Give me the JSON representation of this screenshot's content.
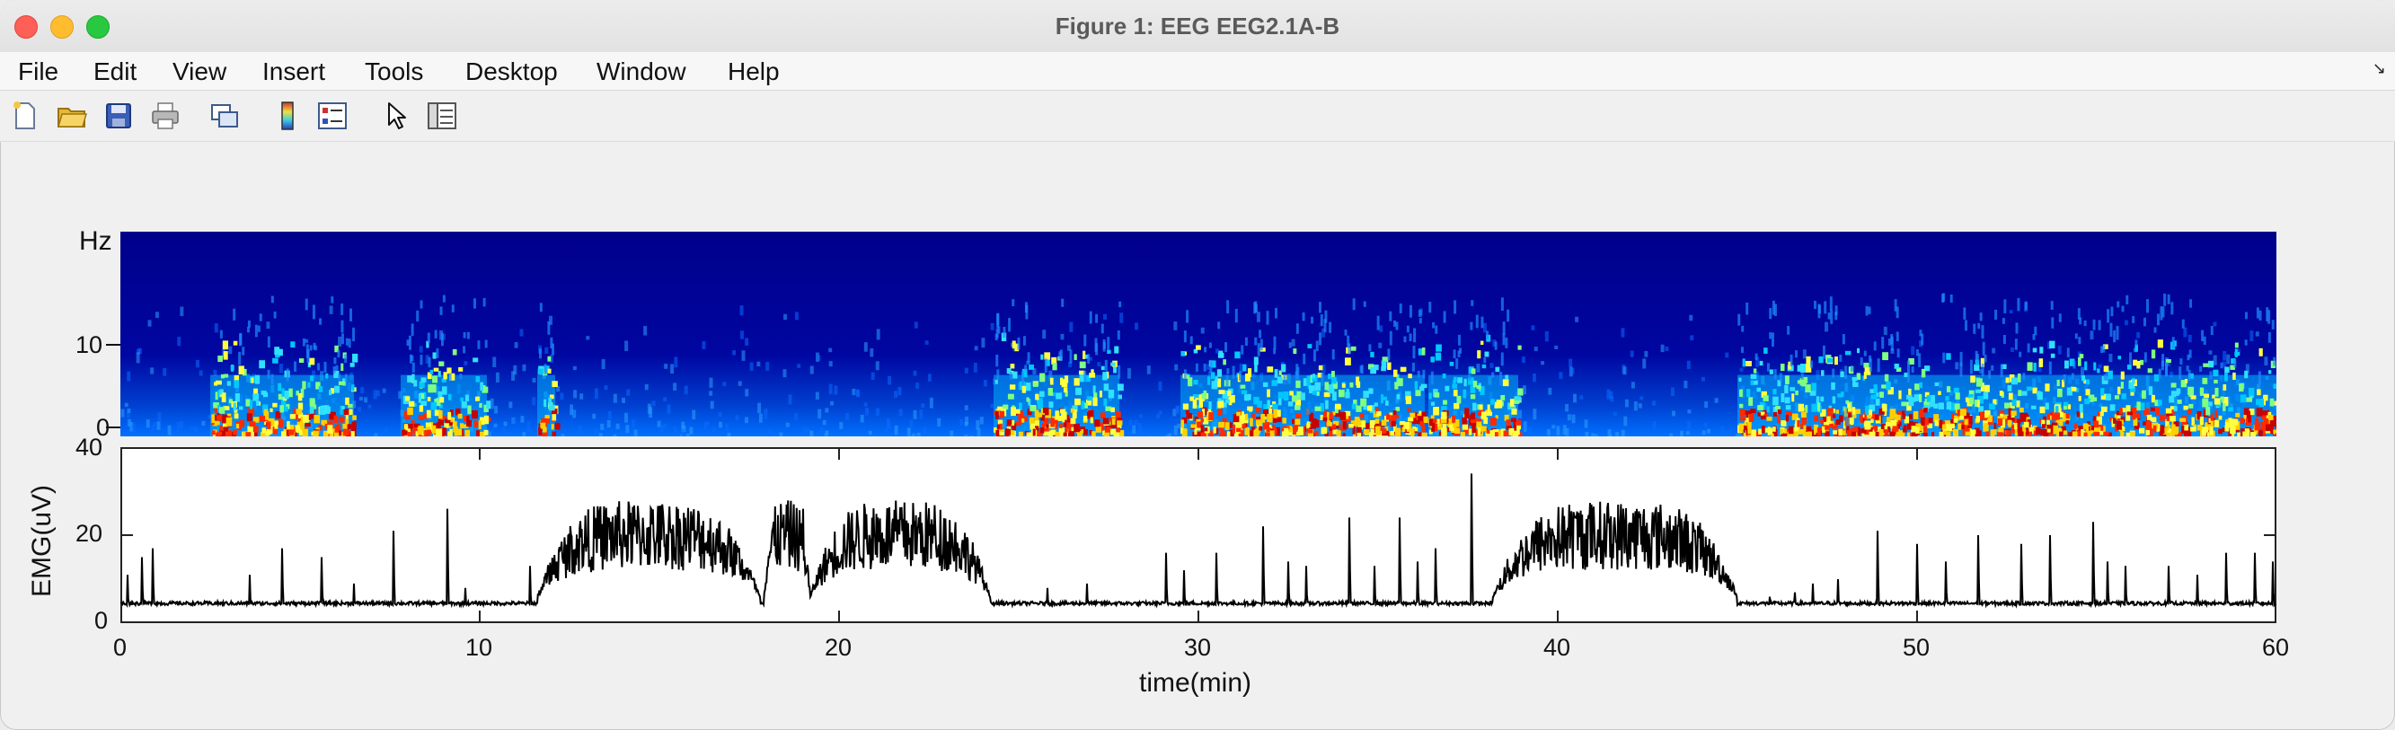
{
  "window": {
    "title": "Figure 1: EEG EEG2.1A-B"
  },
  "menu": [
    "File",
    "Edit",
    "View",
    "Insert",
    "Tools",
    "Desktop",
    "Window",
    "Help"
  ],
  "toolbar": [
    {
      "icon": "new-figure-icon"
    },
    {
      "icon": "open-file-icon"
    },
    {
      "icon": "save-icon"
    },
    {
      "icon": "print-icon"
    },
    {
      "icon": "link-axes-icon"
    },
    {
      "icon": "colorbar-icon"
    },
    {
      "icon": "legend-icon"
    },
    {
      "icon": "pointer-icon"
    },
    {
      "icon": "property-inspector-icon"
    }
  ],
  "chart_data": [
    {
      "type": "heatmap",
      "ylabel": "Hz",
      "yticks": [
        "10",
        "0"
      ],
      "ylim": [
        0,
        20
      ],
      "xlim": [
        0,
        60
      ],
      "colormap": "jet",
      "high_power_bands": [
        [
          2.5,
          6.5
        ],
        [
          7.8,
          10.2
        ],
        [
          11.6,
          12.1
        ],
        [
          24.3,
          27.8
        ],
        [
          29.5,
          33.0
        ],
        [
          33.0,
          36.3
        ],
        [
          36.4,
          38.9
        ],
        [
          45.0,
          48.0
        ],
        [
          48.0,
          52.2
        ],
        [
          52.2,
          55.8
        ],
        [
          55.8,
          60
        ]
      ]
    },
    {
      "type": "line",
      "ylabel": "EMG(uV)",
      "xlabel": "time(min)",
      "xlim": [
        0,
        60
      ],
      "ylim": [
        0,
        40
      ],
      "xticks": [
        "0",
        "10",
        "20",
        "30",
        "40",
        "50",
        "60"
      ],
      "yticks": [
        "40",
        "20",
        "0"
      ],
      "baseline_uV": 4.5,
      "spikes": [
        [
          0.2,
          11
        ],
        [
          0.6,
          15
        ],
        [
          0.9,
          17
        ],
        [
          3.6,
          11
        ],
        [
          4.5,
          17
        ],
        [
          5.6,
          15
        ],
        [
          6.5,
          9
        ],
        [
          7.6,
          21
        ],
        [
          9.1,
          26
        ],
        [
          9.6,
          8
        ],
        [
          11.4,
          13
        ],
        [
          19.0,
          26
        ],
        [
          21.6,
          22
        ],
        [
          25.8,
          8
        ],
        [
          26.9,
          9
        ],
        [
          29.1,
          16
        ],
        [
          29.6,
          12
        ],
        [
          30.5,
          16
        ],
        [
          31.8,
          22
        ],
        [
          32.5,
          14
        ],
        [
          33.0,
          13
        ],
        [
          34.2,
          24
        ],
        [
          34.9,
          13
        ],
        [
          35.6,
          24
        ],
        [
          36.1,
          14
        ],
        [
          36.6,
          17
        ],
        [
          37.6,
          34
        ],
        [
          45.9,
          6
        ],
        [
          46.6,
          7
        ],
        [
          47.1,
          9
        ],
        [
          47.8,
          10
        ],
        [
          48.9,
          21
        ],
        [
          50.0,
          18
        ],
        [
          50.8,
          14
        ],
        [
          51.7,
          20
        ],
        [
          52.9,
          18
        ],
        [
          53.7,
          20
        ],
        [
          54.9,
          23
        ],
        [
          55.3,
          14
        ],
        [
          55.8,
          13
        ],
        [
          57.0,
          13
        ],
        [
          57.8,
          11
        ],
        [
          58.6,
          16
        ],
        [
          59.4,
          16
        ],
        [
          59.9,
          14
        ]
      ],
      "active_periods": [
        [
          11.6,
          17.8
        ],
        [
          17.9,
          19.2
        ],
        [
          19.2,
          24.2
        ],
        [
          38.2,
          45.0
        ]
      ]
    }
  ]
}
